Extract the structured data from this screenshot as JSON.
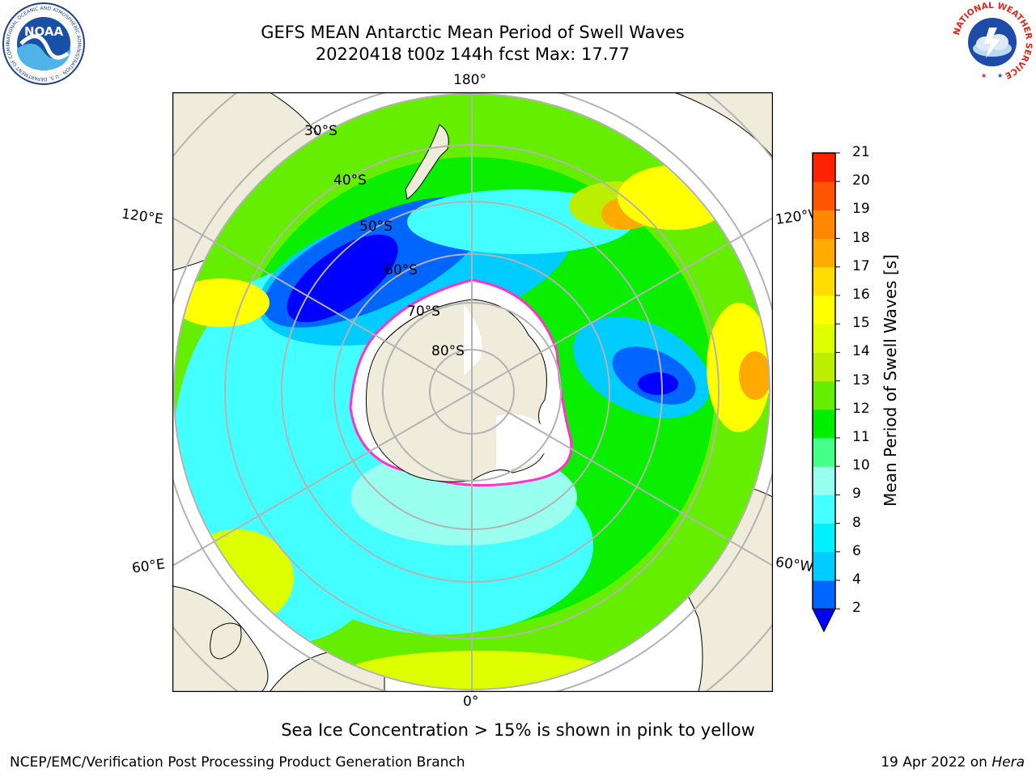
{
  "title": {
    "line1": "GEFS MEAN Antarctic Mean Period of Swell Waves",
    "line2": "20220418 t00z 144h fcst   Max: 17.77"
  },
  "map": {
    "projection": "south-polar-stereographic",
    "longitude_labels": {
      "top": "180°",
      "bottom": "0°",
      "left_upper": "120°E",
      "left_lower": "60°E",
      "right_upper": "120°W",
      "right_lower": "60°W"
    },
    "latitude_labels": [
      "30°S",
      "40°S",
      "50°S",
      "60°S",
      "70°S",
      "80°S"
    ],
    "colors": {
      "land": "#efecdb",
      "ice": "#ffffff",
      "grid": "#b3b3b3",
      "ice_edge": "#ff33cc"
    }
  },
  "colorbar": {
    "title": "Mean Period of Swell Waves [s]",
    "ticks": [
      "2",
      "4",
      "6",
      "8",
      "9",
      "10",
      "11",
      "12",
      "13",
      "14",
      "15",
      "16",
      "17",
      "18",
      "19",
      "20",
      "21"
    ],
    "colors": [
      "#0066ff",
      "#00ccff",
      "#00f0ff",
      "#44ffff",
      "#99ffee",
      "#44ff88",
      "#00ee00",
      "#66ee00",
      "#bbee00",
      "#ddff00",
      "#ffff00",
      "#ffdd00",
      "#ffaa00",
      "#ff8800",
      "#ff5500",
      "#ff2200"
    ],
    "under_color": "#0000ff"
  },
  "logos": {
    "noaa": {
      "text": "NOAA",
      "ring": "NATIONAL OCEANIC AND ATMOSPHERIC ADMINISTRATION · U.S. DEPARTMENT OF COMMERCE"
    },
    "nws": {
      "ring": "NATIONAL WEATHER SERVICE"
    }
  },
  "caption": "Sea Ice Concentration > 15% is shown in pink to yellow",
  "footer": {
    "left": "NCEP/EMC/Verification Post Processing Product Generation Branch",
    "right_prefix": "19 Apr 2022 on ",
    "right_host": "Hera"
  }
}
